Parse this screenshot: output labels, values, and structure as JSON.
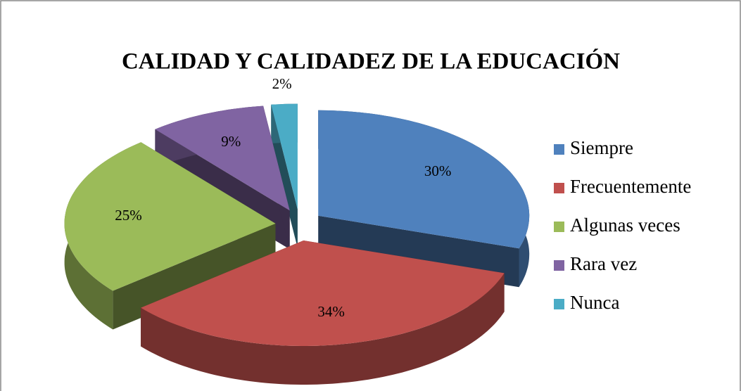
{
  "chart_data": {
    "type": "pie",
    "title": "CALIDAD Y CALIDADEZ DE LA EDUCACIÓN",
    "categories": [
      "Siempre",
      "Frecuentemente",
      "Algunas veces",
      "Rara vez",
      "Nunca"
    ],
    "values": [
      30,
      34,
      25,
      9,
      2
    ],
    "value_labels": [
      "30%",
      "34%",
      "25%",
      "9%",
      "2%"
    ],
    "colors": [
      "#4f81bd",
      "#c0504d",
      "#9bbb59",
      "#8064a2",
      "#4bacc6"
    ],
    "legend": "right"
  }
}
